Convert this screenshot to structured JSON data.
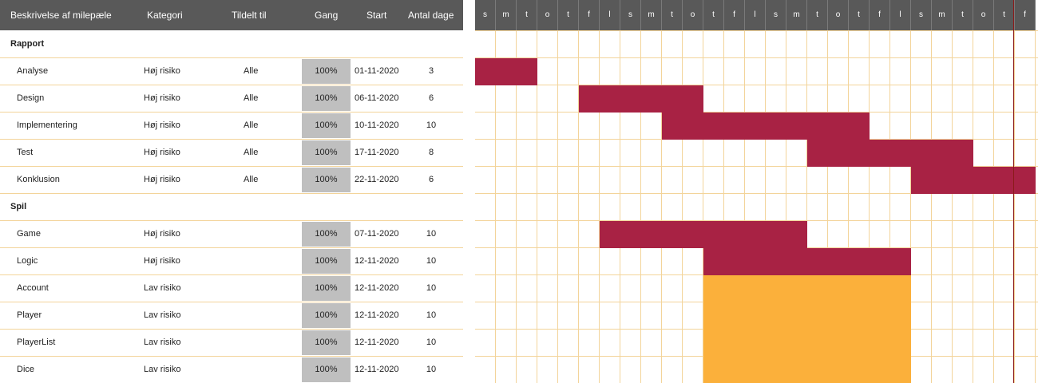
{
  "header": {
    "desc": "Beskrivelse af milepæle",
    "category": "Kategori",
    "assigned": "Tildelt til",
    "progress": "Gang",
    "start": "Start",
    "days": "Antal dage"
  },
  "days": [
    "s",
    "m",
    "t",
    "o",
    "t",
    "f",
    "l",
    "s",
    "m",
    "t",
    "o",
    "t",
    "f",
    "l",
    "s",
    "m",
    "t",
    "o",
    "t",
    "f",
    "l",
    "s",
    "m",
    "t",
    "o",
    "t",
    "f"
  ],
  "colors": {
    "high": "#a82244",
    "low": "#fbb03b",
    "header": "#595959",
    "progress": "#bfbfbf",
    "grid": "#f3d49a"
  },
  "rows": [
    {
      "type": "section",
      "label": "Rapport"
    },
    {
      "type": "task",
      "name": "Analyse",
      "category": "Høj risiko",
      "assigned": "Alle",
      "progress": "100%",
      "start": "01-11-2020",
      "days": "3",
      "risk": "high",
      "offset": 0,
      "length": 3
    },
    {
      "type": "task",
      "name": "Design",
      "category": "Høj risiko",
      "assigned": "Alle",
      "progress": "100%",
      "start": "06-11-2020",
      "days": "6",
      "risk": "high",
      "offset": 5,
      "length": 6
    },
    {
      "type": "task",
      "name": "Implementering",
      "category": "Høj risiko",
      "assigned": "Alle",
      "progress": "100%",
      "start": "10-11-2020",
      "days": "10",
      "risk": "high",
      "offset": 9,
      "length": 10
    },
    {
      "type": "task",
      "name": "Test",
      "category": "Høj risiko",
      "assigned": "Alle",
      "progress": "100%",
      "start": "17-11-2020",
      "days": "8",
      "risk": "high",
      "offset": 16,
      "length": 8
    },
    {
      "type": "task",
      "name": "Konklusion",
      "category": "Høj risiko",
      "assigned": "Alle",
      "progress": "100%",
      "start": "22-11-2020",
      "days": "6",
      "risk": "high",
      "offset": 21,
      "length": 6
    },
    {
      "type": "section",
      "label": "Spil"
    },
    {
      "type": "task",
      "name": "Game",
      "category": "Høj risiko",
      "assigned": "",
      "progress": "100%",
      "start": "07-11-2020",
      "days": "10",
      "risk": "high",
      "offset": 6,
      "length": 10
    },
    {
      "type": "task",
      "name": "Logic",
      "category": "Høj risiko",
      "assigned": "",
      "progress": "100%",
      "start": "12-11-2020",
      "days": "10",
      "risk": "high",
      "offset": 11,
      "length": 10
    },
    {
      "type": "task",
      "name": "Account",
      "category": "Lav risiko",
      "assigned": "",
      "progress": "100%",
      "start": "12-11-2020",
      "days": "10",
      "risk": "low",
      "offset": 11,
      "length": 10
    },
    {
      "type": "task",
      "name": "Player",
      "category": "Lav risiko",
      "assigned": "",
      "progress": "100%",
      "start": "12-11-2020",
      "days": "10",
      "risk": "low",
      "offset": 11,
      "length": 10
    },
    {
      "type": "task",
      "name": "PlayerList",
      "category": "Lav risiko",
      "assigned": "",
      "progress": "100%",
      "start": "12-11-2020",
      "days": "10",
      "risk": "low",
      "offset": 11,
      "length": 10
    },
    {
      "type": "task",
      "name": "Dice",
      "category": "Lav risiko",
      "assigned": "",
      "progress": "100%",
      "start": "12-11-2020",
      "days": "10",
      "risk": "low",
      "offset": 11,
      "length": 10
    }
  ],
  "today_index": 26
}
